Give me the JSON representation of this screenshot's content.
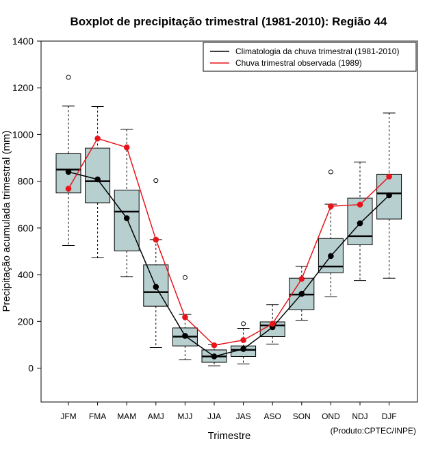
{
  "chart_data": {
    "type": "boxplot",
    "title": "Boxplot de precipitação trimestral (1981-2010): Região 44",
    "xlabel": "Trimestre",
    "ylabel": "Precipitação acumulada trimestral (mm)",
    "ylim": [
      -145,
      1400
    ],
    "yticks": [
      0,
      200,
      400,
      600,
      800,
      1000,
      1200,
      1400
    ],
    "credit": "(Produto:CPTEC/INPE)",
    "categories": [
      "JFM",
      "FMA",
      "MAM",
      "AMJ",
      "MJJ",
      "JJA",
      "JAS",
      "ASO",
      "SON",
      "OND",
      "NDJ",
      "DJF"
    ],
    "boxes": [
      {
        "whisker_low": 525,
        "q1": 750,
        "median": 850,
        "q3": 918,
        "whisker_high": 1122,
        "outliers": [
          1245
        ]
      },
      {
        "whisker_low": 472,
        "q1": 708,
        "median": 800,
        "q3": 942,
        "whisker_high": 1120,
        "outliers": []
      },
      {
        "whisker_low": 392,
        "q1": 502,
        "median": 670,
        "q3": 762,
        "whisker_high": 1022,
        "outliers": []
      },
      {
        "whisker_low": 88,
        "q1": 265,
        "median": 325,
        "q3": 442,
        "whisker_high": 550,
        "outliers": [
          803
        ]
      },
      {
        "whisker_low": 36,
        "q1": 95,
        "median": 135,
        "q3": 172,
        "whisker_high": 230,
        "outliers": [
          388
        ]
      },
      {
        "whisker_low": 10,
        "q1": 25,
        "median": 50,
        "q3": 78,
        "whisker_high": 100,
        "outliers": []
      },
      {
        "whisker_low": 18,
        "q1": 50,
        "median": 78,
        "q3": 95,
        "whisker_high": 170,
        "outliers": [
          190
        ]
      },
      {
        "whisker_low": 103,
        "q1": 135,
        "median": 183,
        "q3": 198,
        "whisker_high": 272,
        "outliers": []
      },
      {
        "whisker_low": 205,
        "q1": 250,
        "median": 315,
        "q3": 385,
        "whisker_high": 435,
        "outliers": []
      },
      {
        "whisker_low": 305,
        "q1": 408,
        "median": 435,
        "q3": 555,
        "whisker_high": 702,
        "outliers": [
          840
        ]
      },
      {
        "whisker_low": 375,
        "q1": 528,
        "median": 565,
        "q3": 728,
        "whisker_high": 882,
        "outliers": []
      },
      {
        "whisker_low": 385,
        "q1": 638,
        "median": 748,
        "q3": 830,
        "whisker_high": 1092,
        "outliers": []
      }
    ],
    "series": [
      {
        "name": "Climatologia da chuva trimestral (1981-2010)",
        "color": "#000000",
        "values": [
          840,
          808,
          642,
          348,
          138,
          50,
          82,
          175,
          318,
          480,
          620,
          740
        ]
      },
      {
        "name": "Chuva trimestral observada (1989)",
        "color": "#e8141a",
        "values": [
          768,
          983,
          945,
          550,
          218,
          98,
          120,
          190,
          382,
          693,
          700,
          820
        ]
      }
    ],
    "box_fill": "#b8cfd0",
    "legend_position": "top-right"
  }
}
